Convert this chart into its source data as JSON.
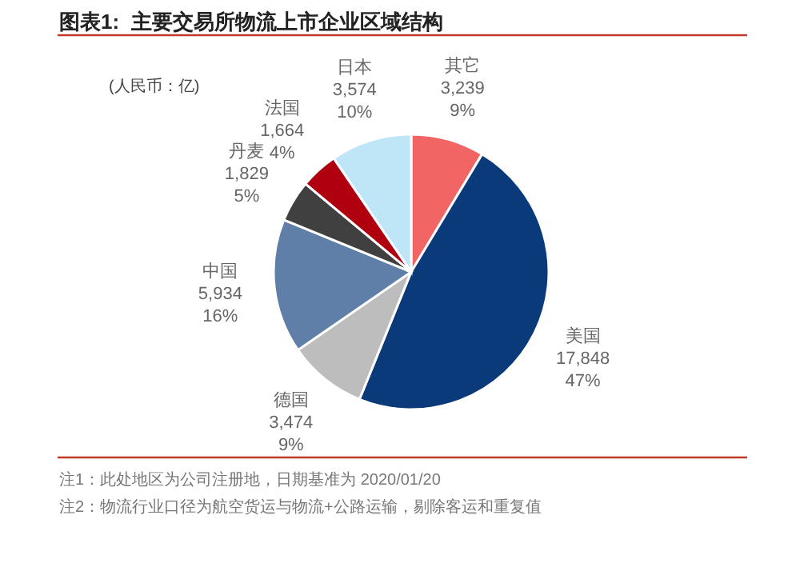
{
  "chart_data": {
    "type": "pie",
    "title": "图表1:  主要交易所物流上市企业区域结构",
    "subtitle": "(人民币：亿)",
    "categories": [
      "其它",
      "美国",
      "德国",
      "中国",
      "丹麦",
      "法国",
      "日本"
    ],
    "values": [
      3239,
      17848,
      3474,
      5934,
      1829,
      1664,
      3574
    ],
    "colors": [
      "#f26565",
      "#0b3a7a",
      "#bdbdbd",
      "#5f7fa8",
      "#404040",
      "#b00010",
      "#bfe6f7"
    ],
    "value_labels": [
      "3,239\n9%",
      "17,848\n47%",
      "3,474\n9%",
      "5,934\n16%",
      "1,829\n5%",
      "1,664\n4%",
      "3,574\n10%"
    ],
    "annotations": [
      "注1：此处地区为公司注册地，日期基准为 2020/01/20",
      "注2：物流行业口径为航空货运与物流+公路运输，剔除客运和重复值"
    ]
  }
}
